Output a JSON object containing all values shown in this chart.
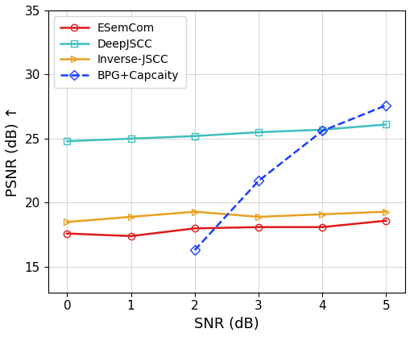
{
  "snr": [
    0,
    1,
    2,
    3,
    4,
    5
  ],
  "ESemCom": [
    17.6,
    17.4,
    18.0,
    18.1,
    18.1,
    18.6
  ],
  "DeepJSCC": [
    24.8,
    25.0,
    25.2,
    25.5,
    25.7,
    26.1
  ],
  "InverseJSCC": [
    18.5,
    18.9,
    19.3,
    18.9,
    19.1,
    19.3
  ],
  "BPGCapacity_snr": [
    2,
    3,
    4,
    5
  ],
  "BPGCapacity": [
    16.3,
    21.7,
    25.6,
    27.6
  ],
  "ESemCom_color": "#e0191a",
  "DeepJSCC_color": "#3fbfbf",
  "InverseJSCC_color": "#e8a020",
  "BPGCapacity_color": "#1c3cff",
  "xlabel": "SNR (dB)",
  "ylabel": "PSNR (dB) ↑",
  "xlim": [
    -0.3,
    5.3
  ],
  "ylim": [
    13,
    35
  ],
  "yticks": [
    15,
    20,
    25,
    30,
    35
  ],
  "xticks": [
    0,
    1,
    2,
    3,
    4,
    5
  ],
  "legend_labels": [
    "ESemCom",
    "DeepJSCC",
    "Inverse-JSCC",
    "BPG+Capcaity"
  ]
}
